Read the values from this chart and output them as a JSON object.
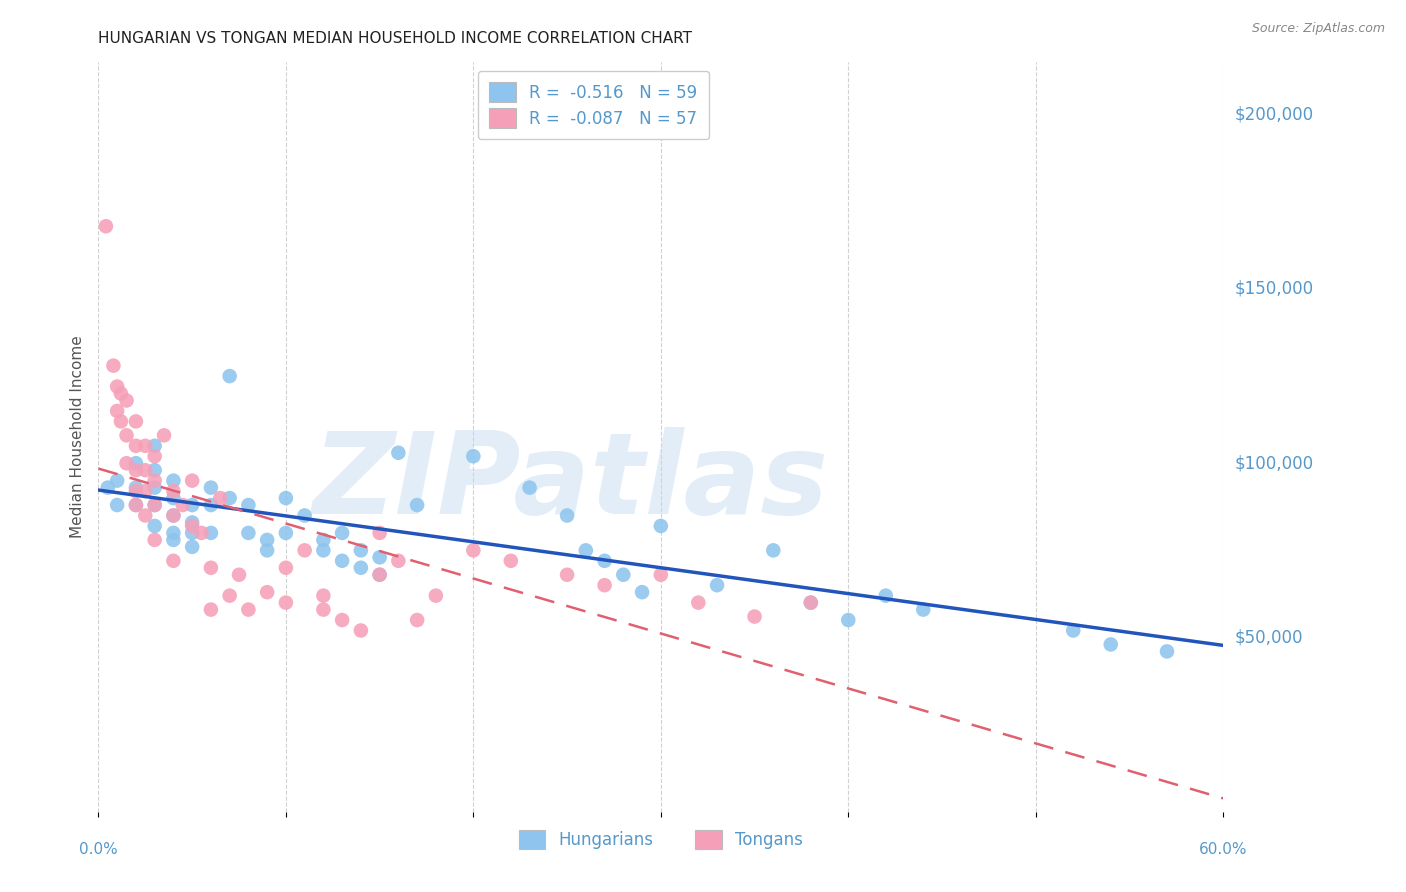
{
  "title": "HUNGARIAN VS TONGAN MEDIAN HOUSEHOLD INCOME CORRELATION CHART",
  "source": "Source: ZipAtlas.com",
  "ylabel": "Median Household Income",
  "ytick_vals": [
    50000,
    100000,
    150000,
    200000
  ],
  "ytick_labels": [
    "$50,000",
    "$100,000",
    "$150,000",
    "$200,000"
  ],
  "ylim": [
    0,
    215000
  ],
  "xlim": [
    0.0,
    0.6
  ],
  "xtick_vals": [
    0.0,
    0.1,
    0.2,
    0.3,
    0.4,
    0.5,
    0.6
  ],
  "legend_label1": "R =  -0.516   N = 59",
  "legend_label2": "R =  -0.087   N = 57",
  "legend_hungarians": "Hungarians",
  "legend_tongans": "Tongans",
  "hungarian_color": "#8ec4ee",
  "tongan_color": "#f5a0b8",
  "hungarian_line_color": "#2255bb",
  "tongan_line_color": "#e06070",
  "label_color": "#5599cc",
  "title_color": "#222222",
  "source_color": "#888888",
  "grid_color": "#cccccc",
  "watermark_text": "ZIPatlas",
  "watermark_color": "#c0d8ee",
  "watermark_alpha": 0.45,
  "background": "#ffffff",
  "hungarian_x": [
    0.005,
    0.01,
    0.01,
    0.02,
    0.02,
    0.02,
    0.03,
    0.03,
    0.03,
    0.03,
    0.03,
    0.04,
    0.04,
    0.04,
    0.04,
    0.04,
    0.05,
    0.05,
    0.05,
    0.05,
    0.06,
    0.06,
    0.06,
    0.07,
    0.07,
    0.08,
    0.08,
    0.09,
    0.09,
    0.1,
    0.1,
    0.11,
    0.12,
    0.12,
    0.13,
    0.13,
    0.14,
    0.14,
    0.15,
    0.15,
    0.16,
    0.17,
    0.2,
    0.23,
    0.25,
    0.26,
    0.27,
    0.28,
    0.29,
    0.3,
    0.33,
    0.36,
    0.38,
    0.4,
    0.42,
    0.44,
    0.52,
    0.54,
    0.57
  ],
  "hungarian_y": [
    93000,
    95000,
    88000,
    100000,
    93000,
    88000,
    105000,
    98000,
    93000,
    88000,
    82000,
    95000,
    90000,
    85000,
    80000,
    78000,
    88000,
    83000,
    80000,
    76000,
    93000,
    88000,
    80000,
    125000,
    90000,
    88000,
    80000,
    78000,
    75000,
    90000,
    80000,
    85000,
    78000,
    75000,
    80000,
    72000,
    75000,
    70000,
    73000,
    68000,
    103000,
    88000,
    102000,
    93000,
    85000,
    75000,
    72000,
    68000,
    63000,
    82000,
    65000,
    75000,
    60000,
    55000,
    62000,
    58000,
    52000,
    48000,
    46000
  ],
  "tongan_x": [
    0.004,
    0.008,
    0.01,
    0.01,
    0.012,
    0.012,
    0.015,
    0.015,
    0.015,
    0.02,
    0.02,
    0.02,
    0.02,
    0.02,
    0.025,
    0.025,
    0.025,
    0.025,
    0.03,
    0.03,
    0.03,
    0.03,
    0.035,
    0.04,
    0.04,
    0.04,
    0.045,
    0.05,
    0.05,
    0.055,
    0.06,
    0.06,
    0.065,
    0.07,
    0.075,
    0.08,
    0.09,
    0.1,
    0.1,
    0.11,
    0.12,
    0.12,
    0.13,
    0.14,
    0.15,
    0.15,
    0.16,
    0.17,
    0.18,
    0.2,
    0.22,
    0.25,
    0.27,
    0.3,
    0.32,
    0.35,
    0.38
  ],
  "tongan_y": [
    168000,
    128000,
    122000,
    115000,
    120000,
    112000,
    118000,
    108000,
    100000,
    112000,
    105000,
    98000,
    92000,
    88000,
    105000,
    98000,
    92000,
    85000,
    102000,
    95000,
    88000,
    78000,
    108000,
    92000,
    85000,
    72000,
    88000,
    95000,
    82000,
    80000,
    70000,
    58000,
    90000,
    62000,
    68000,
    58000,
    63000,
    70000,
    60000,
    75000,
    62000,
    58000,
    55000,
    52000,
    80000,
    68000,
    72000,
    55000,
    62000,
    75000,
    72000,
    68000,
    65000,
    68000,
    60000,
    56000,
    60000
  ]
}
